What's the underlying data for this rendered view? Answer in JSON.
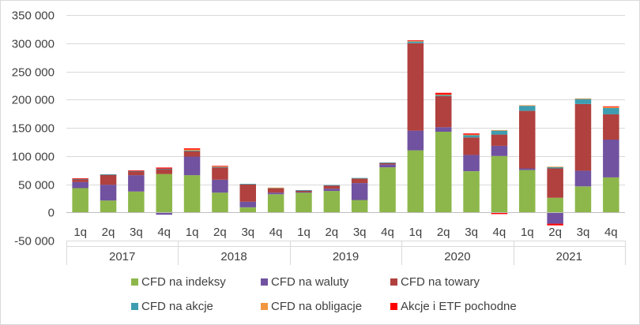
{
  "chart_data": {
    "type": "bar",
    "stacked": true,
    "title": "",
    "xlabel": "",
    "ylabel": "",
    "ylim": [
      -50000,
      350000
    ],
    "yticks": [
      -50000,
      0,
      50000,
      100000,
      150000,
      200000,
      250000,
      300000,
      350000
    ],
    "ytick_labels": [
      "-50 000",
      "0",
      "50 000",
      "100 000",
      "150 000",
      "200 000",
      "250 000",
      "300 000",
      "350 000"
    ],
    "grid": true,
    "legend_position": "bottom",
    "groups": [
      {
        "label": "2017",
        "quarters": [
          "1q",
          "2q",
          "3q",
          "4q"
        ]
      },
      {
        "label": "2018",
        "quarters": [
          "1q",
          "2q",
          "3q",
          "4q"
        ]
      },
      {
        "label": "2019",
        "quarters": [
          "1q",
          "2q",
          "3q",
          "4q"
        ]
      },
      {
        "label": "2020",
        "quarters": [
          "1q",
          "2q",
          "3q",
          "4q"
        ]
      },
      {
        "label": "2021",
        "quarters": [
          "1q",
          "2q",
          "3q",
          "4q"
        ]
      }
    ],
    "series": [
      {
        "name": "CFD na indeksy",
        "color": "#8db74a",
        "values": [
          43000,
          21000,
          37000,
          68000,
          66000,
          35000,
          9000,
          32000,
          35000,
          38000,
          22000,
          80000,
          110000,
          143000,
          73000,
          100000,
          75000,
          26000,
          46000,
          62000
        ]
      },
      {
        "name": "CFD na waluty",
        "color": "#7052a0",
        "values": [
          11000,
          28000,
          29000,
          -4000,
          33000,
          23000,
          10000,
          3000,
          1000,
          4000,
          30000,
          5000,
          35000,
          8000,
          29000,
          18000,
          3000,
          -20000,
          28000,
          67000
        ]
      },
      {
        "name": "CFD na towary",
        "color": "#b0413e",
        "values": [
          5000,
          18000,
          7000,
          9000,
          10000,
          22000,
          31000,
          8000,
          3000,
          6000,
          8000,
          3000,
          155000,
          55000,
          31000,
          20000,
          102000,
          52000,
          118000,
          45000
        ]
      },
      {
        "name": "CFD na akcje",
        "color": "#3e9db0",
        "values": [
          500,
          500,
          500,
          500,
          500,
          500,
          500,
          500,
          500,
          500,
          1000,
          500,
          3000,
          2000,
          4000,
          7000,
          9000,
          2500,
          9000,
          11000
        ]
      },
      {
        "name": "CFD na obligacje",
        "color": "#f29640",
        "values": [
          0,
          0,
          0,
          0,
          2000,
          1500,
          0,
          500,
          0,
          0,
          0,
          0,
          1000,
          1000,
          1000,
          1000,
          1000,
          500,
          1000,
          2000
        ]
      },
      {
        "name": "Akcje i ETF pochodne",
        "color": "#ff0000",
        "values": [
          1000,
          0,
          1000,
          2000,
          2000,
          500,
          0,
          0,
          0,
          0,
          0,
          0,
          1000,
          3000,
          2000,
          -3000,
          0,
          -3000,
          0,
          1000
        ]
      }
    ]
  }
}
